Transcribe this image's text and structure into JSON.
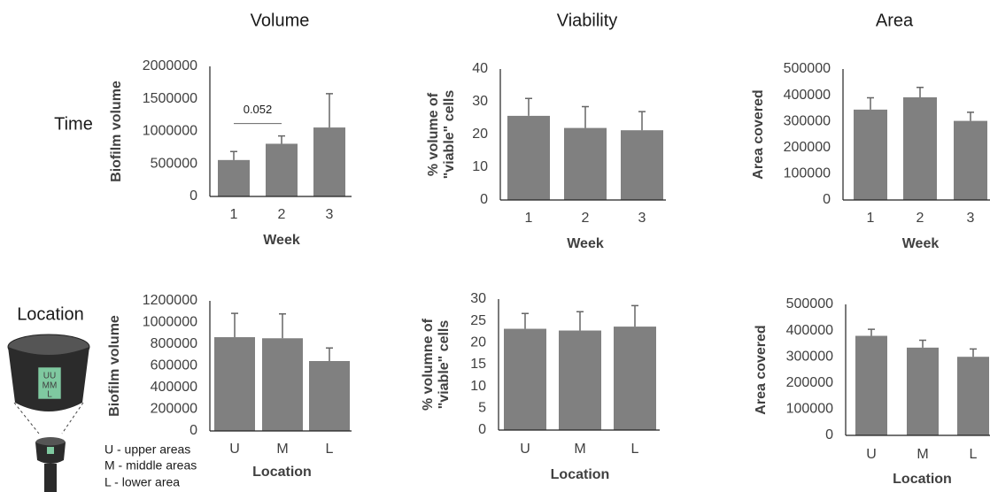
{
  "column_titles": [
    "Volume",
    "Viability",
    "Area"
  ],
  "row_labels": [
    "Time",
    "Location"
  ],
  "device_labels": [
    "UU",
    "MM",
    "L"
  ],
  "legend_notes": [
    "U - upper areas",
    "M - middle areas",
    "L - lower area"
  ],
  "chart_data": [
    {
      "type": "bar",
      "categories": [
        "1",
        "2",
        "3"
      ],
      "values": [
        560000,
        810000,
        1060000
      ],
      "errors": [
        130000,
        120000,
        520000
      ],
      "color": "#808080",
      "ylim": [
        0,
        2000000
      ],
      "yticks": [
        0,
        500000,
        1000000,
        1500000,
        2000000
      ],
      "ylabel": [
        "Biofilm volume"
      ],
      "xlabel": "Week",
      "annotation": "0.052"
    },
    {
      "type": "bar",
      "categories": [
        "1",
        "2",
        "3"
      ],
      "values": [
        25.7,
        22,
        21.3
      ],
      "errors": [
        5.3,
        6.5,
        5.7
      ],
      "color": "#808080",
      "ylim": [
        0,
        40
      ],
      "yticks": [
        0,
        10,
        20,
        30,
        40
      ],
      "ylabel": [
        "% volume of",
        "\"viable\" cells"
      ],
      "xlabel": "Week"
    },
    {
      "type": "bar",
      "categories": [
        "1",
        "2",
        "3"
      ],
      "values": [
        345000,
        392000,
        302000
      ],
      "errors": [
        45000,
        38000,
        33000
      ],
      "color": "#808080",
      "ylim": [
        0,
        500000
      ],
      "yticks": [
        0,
        100000,
        200000,
        300000,
        400000,
        500000
      ],
      "ylabel": [
        "Area covered"
      ],
      "xlabel": "Week"
    },
    {
      "type": "bar",
      "categories": [
        "U",
        "M",
        "L"
      ],
      "values": [
        865000,
        855000,
        645000
      ],
      "errors": [
        220000,
        225000,
        120000
      ],
      "color": "#808080",
      "ylim": [
        0,
        1200000
      ],
      "yticks": [
        0,
        200000,
        400000,
        600000,
        800000,
        1000000,
        1200000
      ],
      "ylabel": [
        "Biofilm volume"
      ],
      "xlabel": "Location"
    },
    {
      "type": "bar",
      "categories": [
        "U",
        "M",
        "L"
      ],
      "values": [
        23.2,
        22.8,
        23.7
      ],
      "errors": [
        3.5,
        4.3,
        4.8
      ],
      "color": "#808080",
      "ylim": [
        0,
        30
      ],
      "yticks": [
        0,
        5,
        10,
        15,
        20,
        25,
        30
      ],
      "ylabel": [
        "% volumne of",
        "\"viable\" cells"
      ],
      "xlabel": "Location"
    },
    {
      "type": "bar",
      "categories": [
        "U",
        "M",
        "L"
      ],
      "values": [
        380000,
        335000,
        300000
      ],
      "errors": [
        25000,
        28000,
        30000
      ],
      "color": "#808080",
      "ylim": [
        0,
        500000
      ],
      "yticks": [
        0,
        100000,
        200000,
        300000,
        400000,
        500000
      ],
      "ylabel": [
        "Area covered"
      ],
      "xlabel": "Location"
    }
  ]
}
